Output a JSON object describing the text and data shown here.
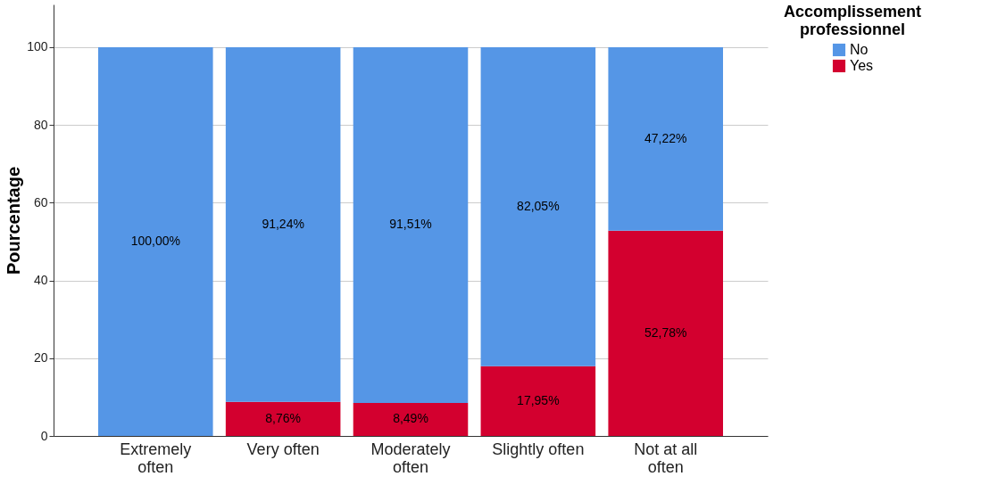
{
  "chart_data": {
    "type": "bar",
    "stacked": true,
    "ylabel": "Pourcentage",
    "legend_title": "Accomplissement professionnel",
    "legend": "top right",
    "grid": "y",
    "categories": [
      "Extremely often",
      "Very often",
      "Moderately often",
      "Slightly often",
      "Not at all often"
    ],
    "ylim": [
      0,
      111
    ],
    "yticks": [
      0,
      20,
      40,
      60,
      80,
      100
    ],
    "series": [
      {
        "name": "Yes",
        "color": "#d3002f",
        "values": [
          0,
          8.76,
          8.49,
          17.95,
          52.78
        ],
        "value_labels": [
          null,
          "8,76%",
          "8,49%",
          "17,95%",
          "52,78%"
        ]
      },
      {
        "name": "No",
        "color": "#5596e6",
        "values": [
          100,
          91.24,
          91.51,
          82.05,
          47.22
        ],
        "value_labels": [
          "100,00%",
          "91,24%",
          "91,51%",
          "82,05%",
          "47,22%"
        ]
      }
    ]
  }
}
